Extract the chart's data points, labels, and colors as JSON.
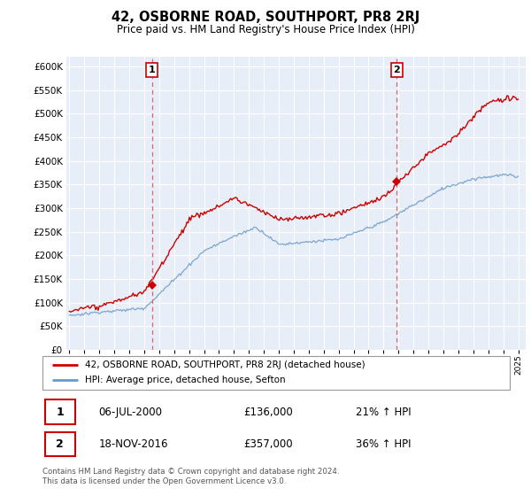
{
  "title": "42, OSBORNE ROAD, SOUTHPORT, PR8 2RJ",
  "subtitle": "Price paid vs. HM Land Registry's House Price Index (HPI)",
  "ylim": [
    0,
    620000
  ],
  "yticks": [
    0,
    50000,
    100000,
    150000,
    200000,
    250000,
    300000,
    350000,
    400000,
    450000,
    500000,
    550000,
    600000
  ],
  "xlim_start": 1994.8,
  "xlim_end": 2025.5,
  "background_color": "#ffffff",
  "plot_background": "#e8eef8",
  "grid_color": "#ffffff",
  "hpi_color": "#6699cc",
  "price_color": "#cc0000",
  "dashed_line_color": "#dd6666",
  "marker1_x": 2000.52,
  "marker1_y": 136000,
  "marker2_x": 2016.88,
  "marker2_y": 357000,
  "legend_label1": "42, OSBORNE ROAD, SOUTHPORT, PR8 2RJ (detached house)",
  "legend_label2": "HPI: Average price, detached house, Sefton",
  "annotation1_num": "1",
  "annotation1_date": "06-JUL-2000",
  "annotation1_price": "£136,000",
  "annotation1_hpi": "21% ↑ HPI",
  "annotation2_num": "2",
  "annotation2_date": "18-NOV-2016",
  "annotation2_price": "£357,000",
  "annotation2_hpi": "36% ↑ HPI",
  "footer": "Contains HM Land Registry data © Crown copyright and database right 2024.\nThis data is licensed under the Open Government Licence v3.0."
}
